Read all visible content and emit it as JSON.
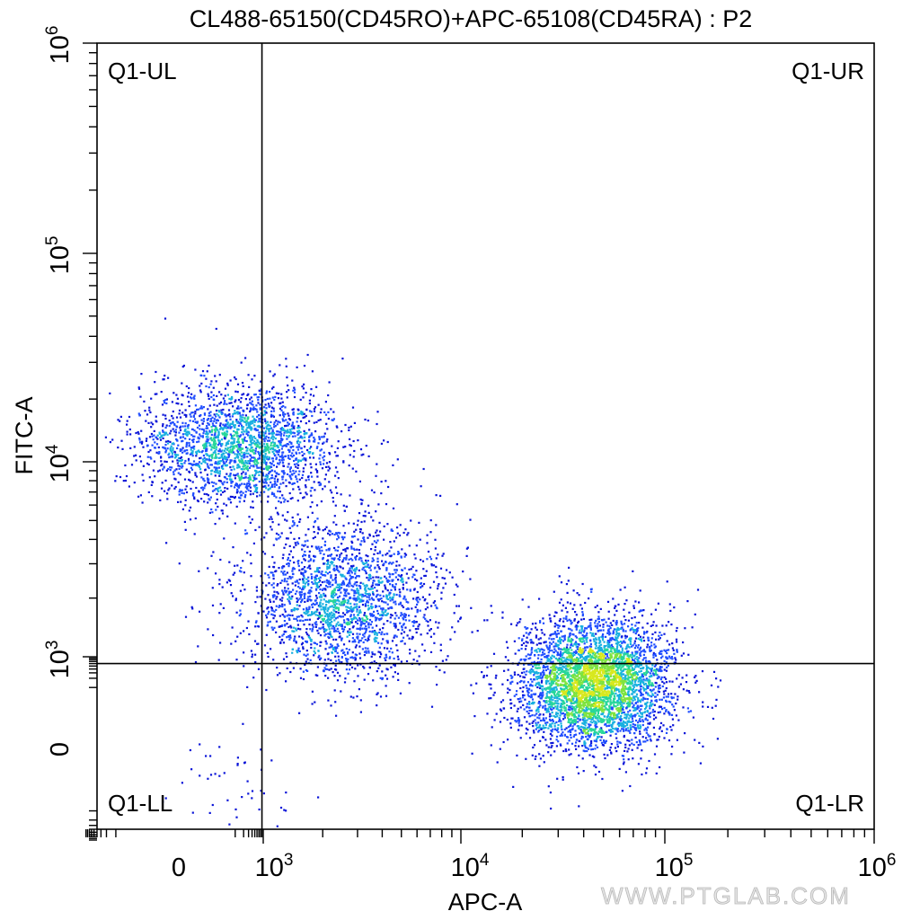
{
  "chart_data": {
    "type": "scatter",
    "style": "flow cytometry density dot plot (pseudocolor)",
    "title": "CL488-65150(CD45RO)+APC-65108(CD45RA) : P2",
    "xlabel": "APC-A",
    "ylabel": "FITC-A",
    "x_scale": "biexponential",
    "y_scale": "biexponential",
    "x_ticks": [
      {
        "base": "0",
        "exp": ""
      },
      {
        "base": "10",
        "exp": "3"
      },
      {
        "base": "10",
        "exp": "4"
      },
      {
        "base": "10",
        "exp": "5"
      },
      {
        "base": "10",
        "exp": "6"
      }
    ],
    "y_ticks": [
      {
        "base": "0",
        "exp": ""
      },
      {
        "base": "10",
        "exp": "3"
      },
      {
        "base": "10",
        "exp": "4"
      },
      {
        "base": "10",
        "exp": "5"
      },
      {
        "base": "10",
        "exp": "6"
      }
    ],
    "xlim": [
      -400,
      1000000
    ],
    "ylim": [
      -400,
      1000000
    ],
    "quadrant_gate": {
      "x": 900,
      "y": 600
    },
    "quadrants": [
      "Q1-UL",
      "Q1-UR",
      "Q1-LL",
      "Q1-LR"
    ],
    "populations": [
      {
        "name": "",
        "center_x": 150,
        "center_y": 12000,
        "spread_x_decades": 0.45,
        "spread_y_decades": 0.28,
        "approx_events": 2300
      },
      {
        "name": "",
        "center_x": 2500,
        "center_y": 2000,
        "spread_x_decades": 0.45,
        "spread_y_decades": 0.35,
        "approx_events": 2200
      },
      {
        "name": "",
        "center_x": 45000,
        "center_y": 150,
        "spread_x_decades": 0.35,
        "spread_y_decades": 0.3,
        "approx_events": 4200
      },
      {
        "name": "",
        "center_x": 80,
        "center_y": -100,
        "spread_x_decades": 0.3,
        "spread_y_decades": 0.3,
        "approx_events": 60
      }
    ],
    "density_colors": [
      "#0a14d8",
      "#1f4dff",
      "#18b0e0",
      "#27d69a",
      "#7ee33f",
      "#d8e81e"
    ],
    "grid": false,
    "legend": "none"
  },
  "watermark": "WWW.PTGLAB.COM"
}
